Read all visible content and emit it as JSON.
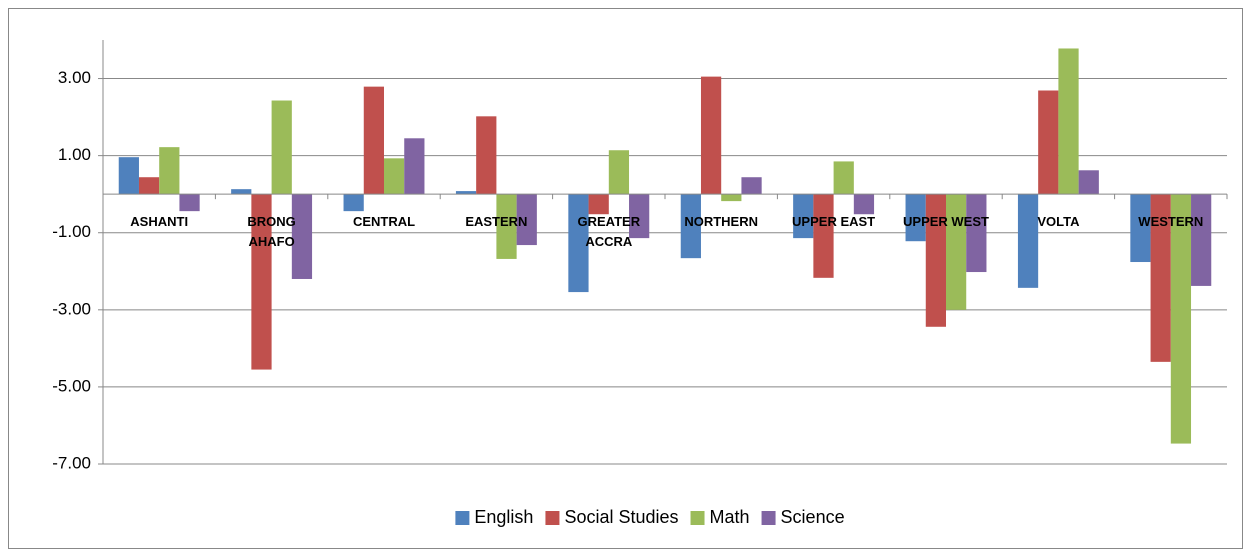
{
  "chart_data": {
    "type": "bar",
    "categories": [
      "ASHANTI",
      "BRONG AHAFO",
      "CENTRAL",
      "EASTERN",
      "GREATER ACCRA",
      "NORTHERN",
      "UPPER EAST",
      "UPPER WEST",
      "VOLTA",
      "WESTERN"
    ],
    "series": [
      {
        "name": "English",
        "color": "#4f81bd",
        "values": [
          0.96,
          0.13,
          -0.44,
          0.08,
          -2.54,
          -1.66,
          -1.14,
          -1.22,
          -2.43,
          -1.76
        ]
      },
      {
        "name": "Social Studies",
        "color": "#c0504d",
        "values": [
          0.44,
          -4.55,
          2.79,
          2.02,
          -0.52,
          3.05,
          -2.17,
          -3.44,
          2.69,
          -4.35
        ]
      },
      {
        "name": "Math",
        "color": "#9bbb59",
        "values": [
          1.22,
          2.43,
          0.93,
          -1.68,
          1.14,
          -0.18,
          0.85,
          -3.0,
          3.78,
          -6.47
        ]
      },
      {
        "name": "Science",
        "color": "#8064a2",
        "values": [
          -0.44,
          -2.2,
          1.45,
          -1.32,
          -1.14,
          0.44,
          -0.52,
          -2.02,
          0.62,
          -2.38
        ]
      }
    ],
    "ylim": [
      -7,
      4
    ],
    "yticks": [
      {
        "value": -7,
        "label": "-7.00"
      },
      {
        "value": -5,
        "label": "-5.00"
      },
      {
        "value": -3,
        "label": "-3.00"
      },
      {
        "value": -1,
        "label": "-1.00"
      },
      {
        "value": 1,
        "label": "1.00"
      },
      {
        "value": 3,
        "label": "3.00"
      }
    ],
    "grid": true,
    "legend": "bottom"
  }
}
